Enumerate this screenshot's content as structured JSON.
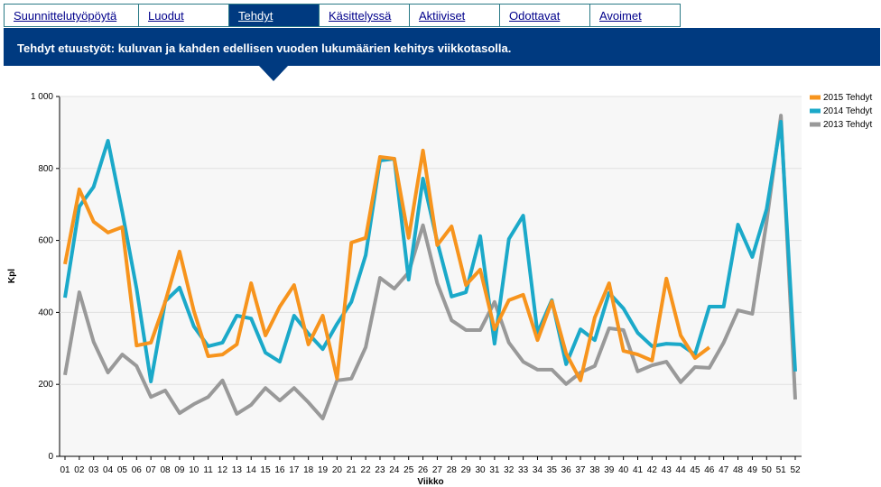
{
  "tabs": [
    "Suunnittelutyöpöytä",
    "Luodut",
    "Tehdyt",
    "Käsittelyssä",
    "Aktiiviset",
    "Odottavat",
    "Avoimet"
  ],
  "active_tab": 2,
  "chart_data": {
    "type": "line",
    "title": "Tehdyt etuustyöt: kuluvan ja kahden edellisen vuoden lukumäärien kehitys viikkotasolla.",
    "x_label": "Viikko",
    "y_label": "Kpl",
    "categories": [
      "01",
      "02",
      "03",
      "04",
      "05",
      "06",
      "07",
      "08",
      "09",
      "10",
      "11",
      "12",
      "13",
      "14",
      "15",
      "16",
      "17",
      "18",
      "19",
      "20",
      "21",
      "22",
      "23",
      "24",
      "25",
      "26",
      "27",
      "28",
      "29",
      "30",
      "31",
      "32",
      "33",
      "34",
      "35",
      "36",
      "37",
      "38",
      "39",
      "40",
      "41",
      "42",
      "43",
      "44",
      "45",
      "46",
      "47",
      "48",
      "49",
      "50",
      "51",
      "52"
    ],
    "ylim": [
      0,
      1000
    ],
    "yticks": [
      0,
      200,
      400,
      600,
      800,
      {
        "value": 1000,
        "label": "1 000"
      }
    ],
    "grid": true,
    "legend": "right",
    "series": [
      {
        "name": "2015 Tehdyt",
        "color": "#f7941d",
        "values": [
          534,
          742,
          652,
          622,
          637,
          308,
          316,
          429,
          569,
          404,
          278,
          283,
          311,
          481,
          336,
          416,
          476,
          311,
          391,
          216,
          594,
          607,
          832,
          827,
          607,
          850,
          587,
          639,
          476,
          519,
          353,
          434,
          449,
          323,
          431,
          286,
          211,
          386,
          481,
          293,
          283,
          266,
          494,
          336,
          273,
          303,
          null,
          null,
          null,
          null,
          null,
          null
        ]
      },
      {
        "name": "2014 Tehdyt",
        "color": "#1ba9c9",
        "values": [
          441,
          694,
          749,
          877,
          679,
          466,
          208,
          431,
          469,
          361,
          306,
          316,
          391,
          383,
          288,
          263,
          391,
          341,
          298,
          368,
          429,
          559,
          822,
          827,
          491,
          772,
          596,
          444,
          456,
          612,
          313,
          604,
          669,
          343,
          434,
          256,
          353,
          323,
          454,
          411,
          343,
          306,
          313,
          311,
          283,
          416,
          416,
          644,
          554,
          687,
          930,
          236
        ]
      },
      {
        "name": "2013 Tehdyt",
        "color": "#999999",
        "values": [
          226,
          456,
          318,
          233,
          283,
          251,
          165,
          183,
          120,
          145,
          165,
          211,
          118,
          143,
          190,
          155,
          190,
          150,
          105,
          211,
          216,
          303,
          496,
          466,
          511,
          642,
          481,
          378,
          351,
          351,
          429,
          316,
          263,
          241,
          241,
          201,
          233,
          251,
          356,
          351,
          236,
          253,
          263,
          206,
          248,
          246,
          316,
          406,
          396,
          652,
          947,
          158
        ]
      }
    ]
  }
}
